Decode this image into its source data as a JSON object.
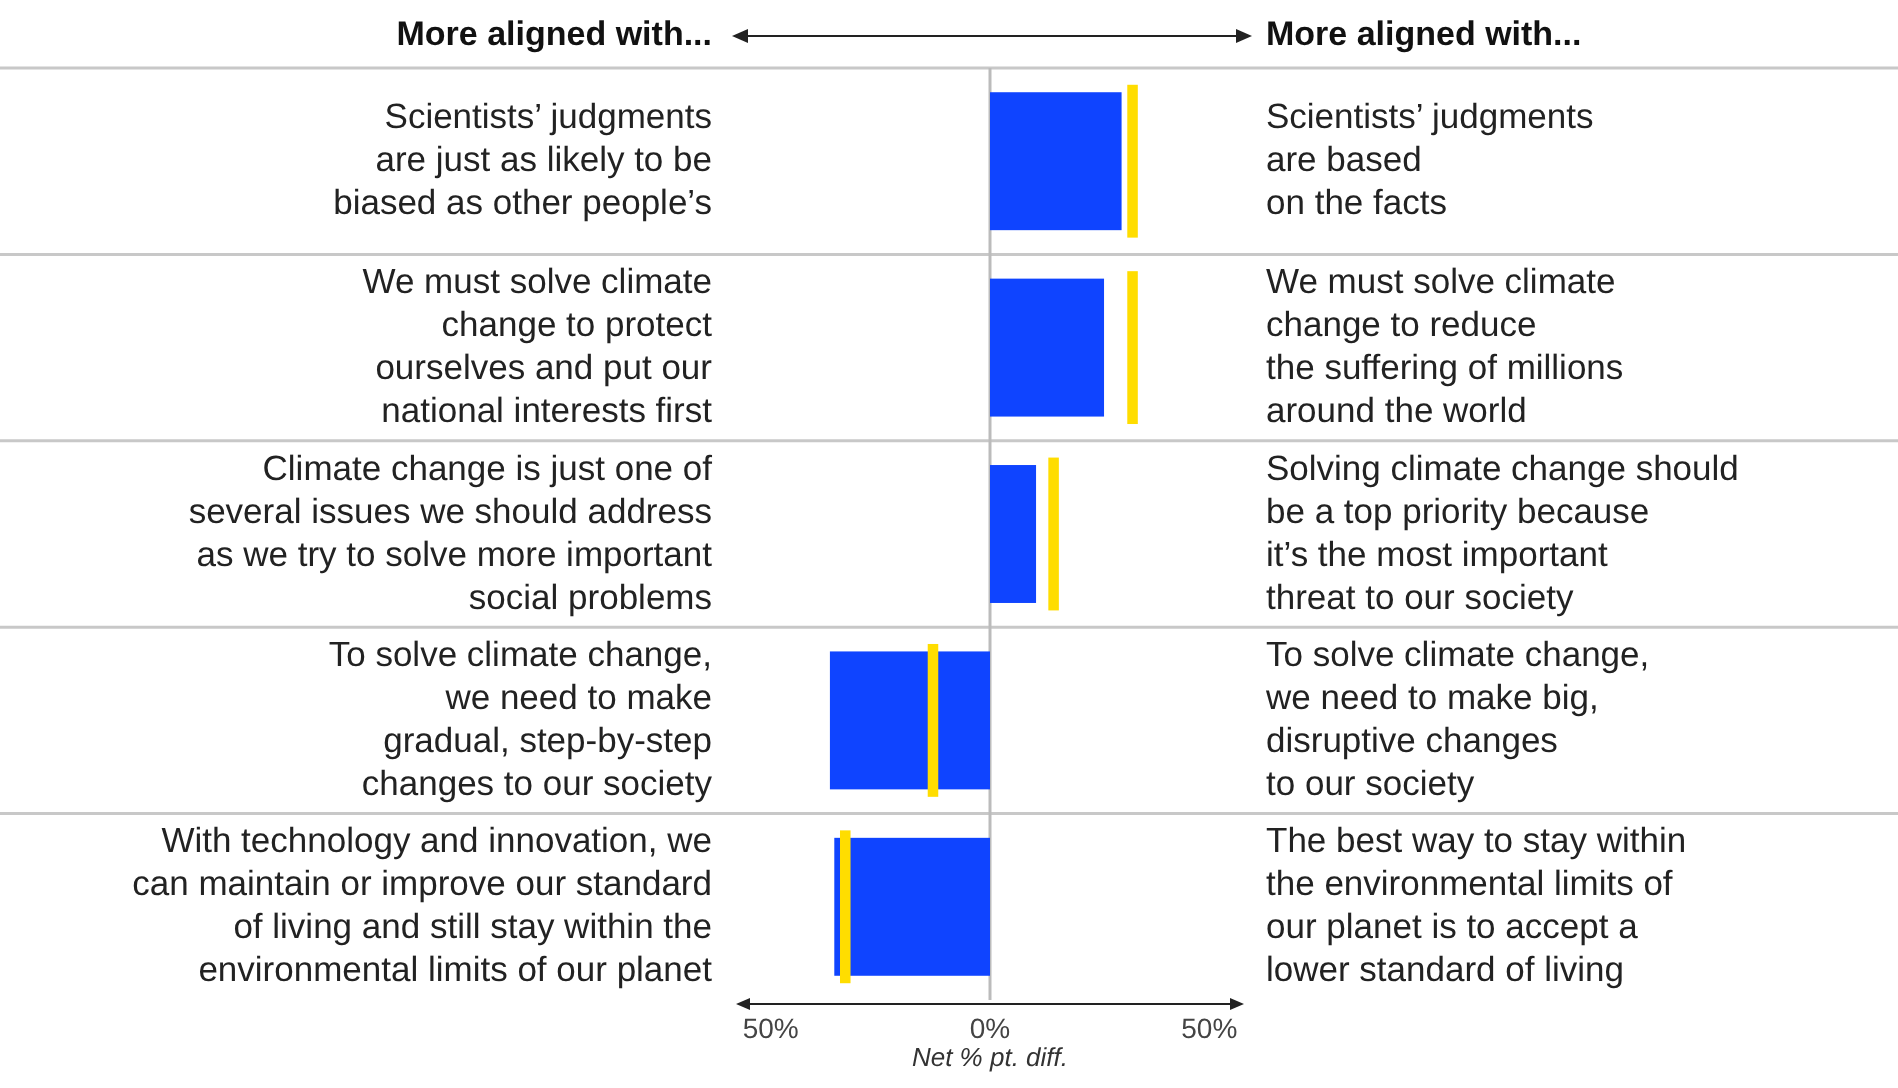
{
  "chart_data": {
    "type": "bar",
    "orientation": "horizontal",
    "xlabel": "Net % pt. diff.",
    "categories": [
      "Scientists’ judgments\nare just as likely to be\nbiased as other people’s",
      "We must solve climate\nchange to protect\nourselves and put our\nnational interests first",
      "Climate change is just one of\nseveral issues we should address\nas we try to solve more important\nsocial problems",
      "To solve climate change,\nwe need to make\ngradual, step-by-step\nchanges to our society",
      "With technology and innovation, we\ncan maintain or improve our standard\nof living and still stay within the\nenvironmental limits of our planet"
    ],
    "y2_categories": [
      "Scientists’ judgments\nare based\non the facts",
      "We must solve climate\nchange to reduce\nthe suffering of millions\naround the world",
      "Solving climate change should\nbe a top priority because\nit’s the most important\nthreat to our society",
      "To solve climate change,\nwe need to make big,\ndisruptive changes\nto our society",
      "The best way to stay within\nthe environmental limits of\nour planet is to accept a\nlower standard of living"
    ],
    "annotations": [
      "More aligned with...",
      "More aligned with..."
    ],
    "series": [
      {
        "type": "bar",
        "color": "#0f44ff",
        "values": [
          30,
          26,
          10.5,
          -36.5,
          -35.5
        ]
      },
      {
        "type": "bar",
        "color": "#ffdd00",
        "base": [
          31.3,
          31.3,
          13.3,
          -14.2,
          -34.2
        ],
        "values": [
          2.4,
          2.4,
          2.4,
          2.4,
          2.4
        ]
      }
    ],
    "xlim": [
      -57,
      57
    ],
    "xticks": [
      {
        "value": -50,
        "label": "50%"
      },
      {
        "value": 0,
        "label": "0%"
      },
      {
        "value": 50,
        "label": "50%"
      }
    ],
    "grid": "y"
  }
}
